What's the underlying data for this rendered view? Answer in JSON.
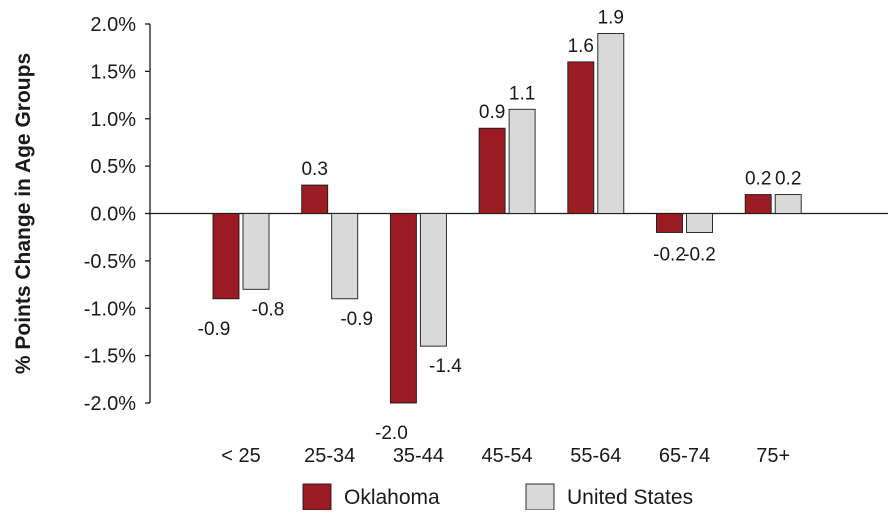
{
  "chart_data": {
    "type": "bar",
    "categories": [
      "< 25",
      "25-34",
      "35-44",
      "45-54",
      "55-64",
      "65-74",
      "75+"
    ],
    "series": [
      {
        "name": "Oklahoma",
        "color": "#9b1c22",
        "values": [
          -0.9,
          0.3,
          -2.0,
          0.9,
          1.6,
          -0.2,
          0.2
        ],
        "labels": [
          "-0.9",
          "0.3",
          "-2.0",
          "0.9",
          "1.6",
          "-0.2",
          "0.2"
        ]
      },
      {
        "name": "United States",
        "color": "#d9d9d9",
        "values": [
          -0.8,
          -0.9,
          -1.4,
          1.1,
          1.9,
          -0.2,
          0.2
        ],
        "labels": [
          "-0.8",
          "-0.9",
          "-1.4",
          "1.1",
          "1.9",
          "-0.2",
          "0.2"
        ]
      }
    ],
    "ylabel": "% Points Change in Age Groups",
    "xlabel": "",
    "ylim": [
      -2.0,
      2.0
    ],
    "yticks": [
      2.0,
      1.5,
      1.0,
      0.5,
      0.0,
      -0.5,
      -1.0,
      -1.5,
      -2.0
    ],
    "ytick_labels": [
      "2.0%",
      "1.5%",
      "1.0%",
      "0.5%",
      "0.0%",
      "-0.5%",
      "-1.0%",
      "-1.5%",
      "-2.0%"
    ],
    "grid": false,
    "legend_position": "bottom"
  }
}
